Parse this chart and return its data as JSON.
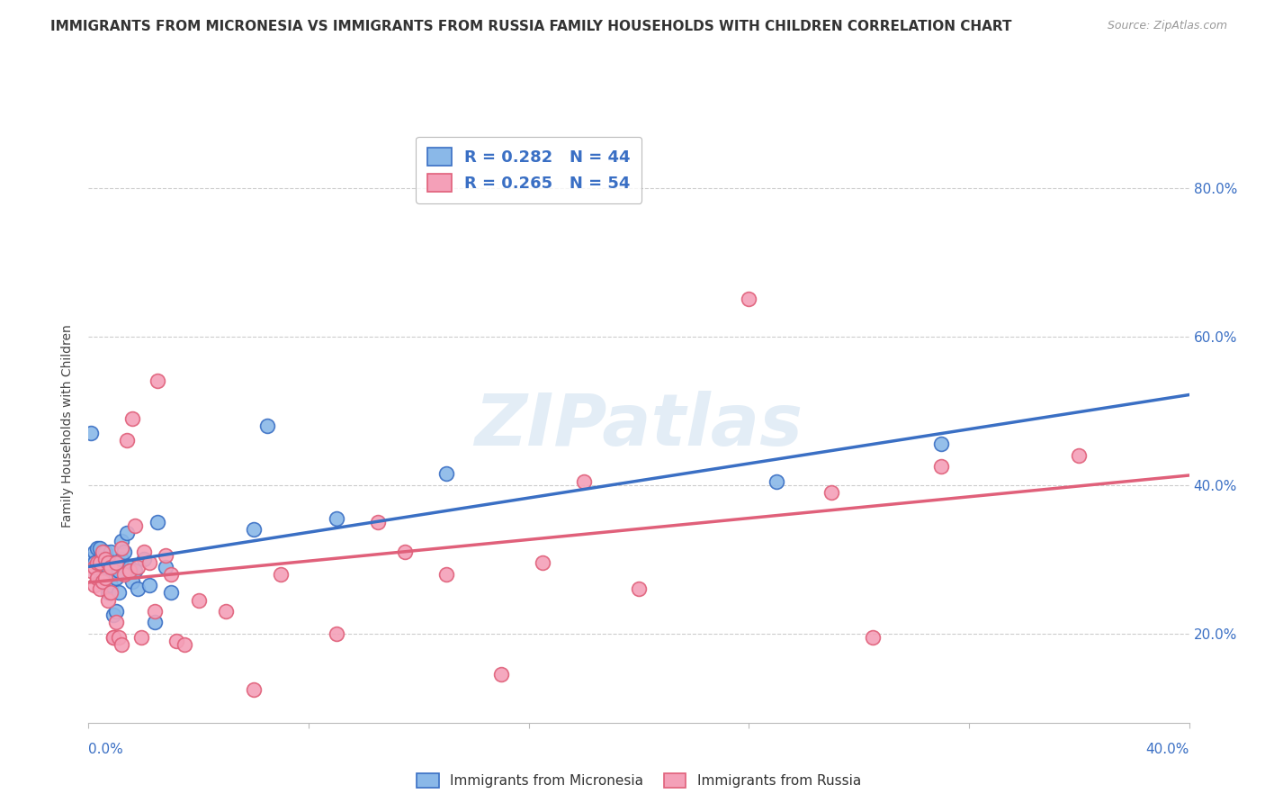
{
  "title": "IMMIGRANTS FROM MICRONESIA VS IMMIGRANTS FROM RUSSIA FAMILY HOUSEHOLDS WITH CHILDREN CORRELATION CHART",
  "source": "Source: ZipAtlas.com",
  "ylabel": "Family Households with Children",
  "micronesia_color": "#8ab8e8",
  "russia_color": "#f4a0b8",
  "micronesia_line_color": "#3a6fc4",
  "russia_line_color": "#e0607a",
  "watermark_text": "ZIPatlas",
  "legend_R_micronesia": "R = 0.282",
  "legend_N_micronesia": "N = 44",
  "legend_R_russia": "R = 0.265",
  "legend_N_russia": "N = 54",
  "micronesia_x": [
    0.001,
    0.001,
    0.002,
    0.002,
    0.003,
    0.003,
    0.004,
    0.004,
    0.005,
    0.005,
    0.005,
    0.006,
    0.006,
    0.007,
    0.007,
    0.007,
    0.008,
    0.008,
    0.009,
    0.009,
    0.01,
    0.01,
    0.011,
    0.011,
    0.012,
    0.012,
    0.013,
    0.014,
    0.015,
    0.016,
    0.017,
    0.018,
    0.02,
    0.022,
    0.024,
    0.025,
    0.028,
    0.03,
    0.06,
    0.065,
    0.09,
    0.13,
    0.25,
    0.31
  ],
  "micronesia_y": [
    0.3,
    0.47,
    0.31,
    0.295,
    0.315,
    0.28,
    0.285,
    0.315,
    0.29,
    0.275,
    0.305,
    0.29,
    0.31,
    0.3,
    0.255,
    0.29,
    0.31,
    0.265,
    0.295,
    0.225,
    0.23,
    0.275,
    0.285,
    0.255,
    0.3,
    0.325,
    0.31,
    0.335,
    0.29,
    0.27,
    0.285,
    0.26,
    0.3,
    0.265,
    0.215,
    0.35,
    0.29,
    0.255,
    0.34,
    0.48,
    0.355,
    0.415,
    0.405,
    0.455
  ],
  "russia_x": [
    0.001,
    0.002,
    0.002,
    0.003,
    0.003,
    0.004,
    0.004,
    0.005,
    0.005,
    0.006,
    0.006,
    0.007,
    0.007,
    0.008,
    0.008,
    0.009,
    0.009,
    0.01,
    0.01,
    0.011,
    0.012,
    0.012,
    0.013,
    0.014,
    0.015,
    0.016,
    0.017,
    0.018,
    0.019,
    0.02,
    0.022,
    0.024,
    0.025,
    0.028,
    0.03,
    0.032,
    0.035,
    0.04,
    0.05,
    0.06,
    0.07,
    0.09,
    0.105,
    0.115,
    0.13,
    0.15,
    0.165,
    0.18,
    0.2,
    0.24,
    0.27,
    0.285,
    0.31,
    0.36
  ],
  "russia_y": [
    0.285,
    0.265,
    0.29,
    0.275,
    0.295,
    0.295,
    0.26,
    0.31,
    0.27,
    0.3,
    0.275,
    0.245,
    0.295,
    0.29,
    0.255,
    0.195,
    0.195,
    0.215,
    0.295,
    0.195,
    0.185,
    0.315,
    0.28,
    0.46,
    0.285,
    0.49,
    0.345,
    0.29,
    0.195,
    0.31,
    0.295,
    0.23,
    0.54,
    0.305,
    0.28,
    0.19,
    0.185,
    0.245,
    0.23,
    0.125,
    0.28,
    0.2,
    0.35,
    0.31,
    0.28,
    0.145,
    0.295,
    0.405,
    0.26,
    0.65,
    0.39,
    0.195,
    0.425,
    0.44
  ],
  "xlim": [
    0.0,
    0.4
  ],
  "ylim": [
    0.08,
    0.88
  ],
  "yticks": [
    0.2,
    0.4,
    0.6,
    0.8
  ],
  "ytick_labels": [
    "20.0%",
    "40.0%",
    "60.0%",
    "80.0%"
  ],
  "grid_color": "#cccccc",
  "background_color": "#ffffff",
  "axis_color": "#3a6fc4",
  "title_fontsize": 11,
  "label_fontsize": 10,
  "tick_fontsize": 11
}
